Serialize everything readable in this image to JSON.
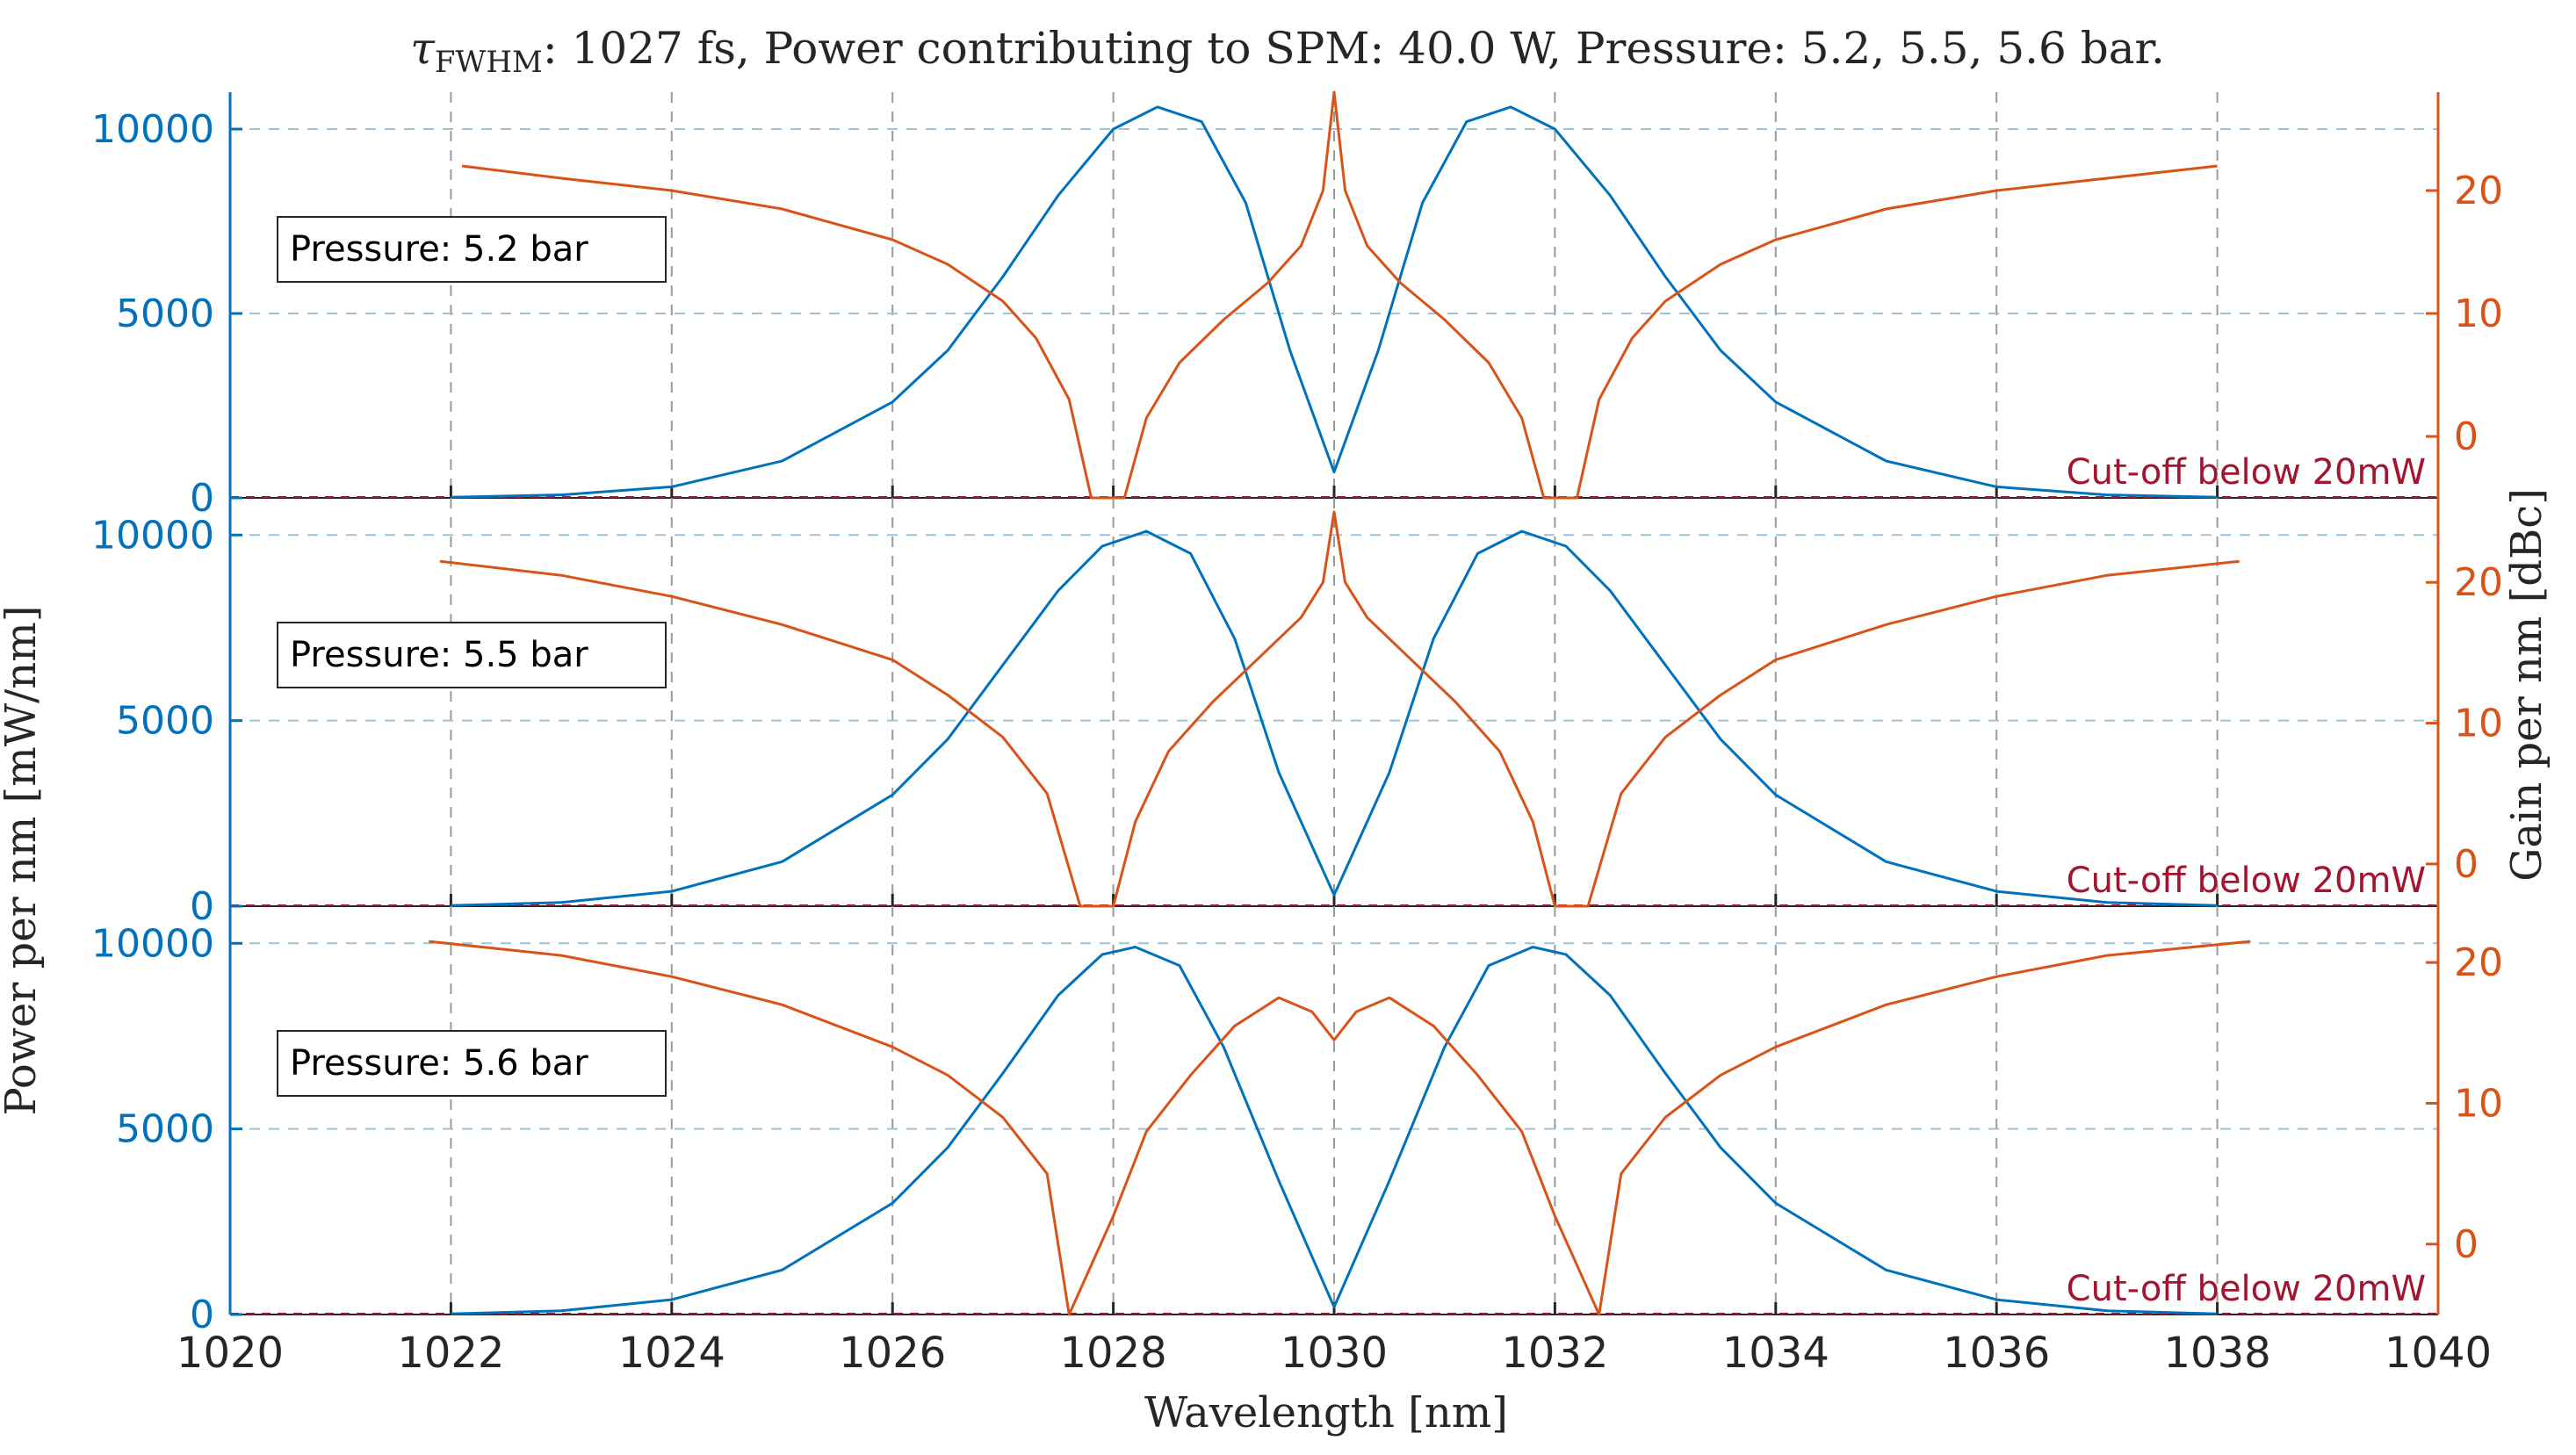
{
  "chart_data": {
    "type": "line",
    "title_prefix": "τ",
    "title_subscript": "FWHM",
    "title": ": 1027 fs, Power contributing to SPM: 40.0 W, Pressure: 5.2, 5.5, 5.6 bar.",
    "xlabel": "Wavelength [nm]",
    "ylabel_left": "Power per nm [mW/nm]",
    "ylabel_right": "Gain per nm [dBc]",
    "xlim": [
      1020,
      1040
    ],
    "xticks": [
      1020,
      1022,
      1024,
      1026,
      1028,
      1030,
      1032,
      1034,
      1036,
      1038,
      1040
    ],
    "colors": {
      "power": "#0072BD",
      "gain": "#D95319",
      "cutoff": "#A2142F",
      "grid": "#9BC4DA"
    },
    "panels": [
      {
        "label": "Pressure: 5.2 bar",
        "cutoff_text": "Cut-off below 20mW",
        "ylim_left": [
          0,
          11000
        ],
        "yticks_left": [
          0,
          5000,
          10000
        ],
        "ylim_right": [
          -5,
          28
        ],
        "yticks_right": [
          0,
          10,
          20
        ],
        "series": [
          {
            "name": "Power",
            "axis": "left",
            "x": [
              1022,
              1023,
              1024,
              1025,
              1026,
              1026.5,
              1027,
              1027.5,
              1028,
              1028.4,
              1028.8,
              1029.2,
              1029.6,
              1030,
              1030.4,
              1030.8,
              1031.2,
              1031.6,
              1032,
              1032.5,
              1033,
              1033.5,
              1034,
              1035,
              1036,
              1037,
              1038
            ],
            "values": [
              20,
              80,
              300,
              1000,
              2600,
              4000,
              6000,
              8200,
              10000,
              10600,
              10200,
              8000,
              4000,
              700,
              4000,
              8000,
              10200,
              10600,
              10000,
              8200,
              6000,
              4000,
              2600,
              1000,
              300,
              80,
              20
            ]
          },
          {
            "name": "Gain",
            "axis": "right",
            "x": [
              1022.1,
              1023,
              1024,
              1025,
              1026,
              1026.5,
              1027,
              1027.3,
              1027.6,
              1027.8,
              1028.1,
              1028.3,
              1028.6,
              1029,
              1029.4,
              1029.7,
              1029.9,
              1030,
              1030.1,
              1030.3,
              1030.6,
              1031,
              1031.4,
              1031.7,
              1031.9,
              1032.2,
              1032.4,
              1032.7,
              1033,
              1033.5,
              1034,
              1035,
              1036,
              1037,
              1038
            ],
            "values": [
              22,
              21,
              20,
              18.5,
              16,
              14,
              11,
              8,
              3,
              -5,
              -5,
              1.5,
              6,
              9.5,
              12.5,
              15.5,
              20,
              28,
              20,
              15.5,
              12.5,
              9.5,
              6,
              1.5,
              -5,
              -5,
              3,
              8,
              11,
              14,
              16,
              18.5,
              20,
              21,
              22
            ]
          }
        ]
      },
      {
        "label": "Pressure: 5.5 bar",
        "cutoff_text": "Cut-off below 20mW",
        "ylim_left": [
          0,
          11000
        ],
        "yticks_left": [
          0,
          5000,
          10000
        ],
        "ylim_right": [
          -3,
          26
        ],
        "yticks_right": [
          0,
          10,
          20
        ],
        "series": [
          {
            "name": "Power",
            "axis": "left",
            "x": [
              1022,
              1023,
              1024,
              1025,
              1026,
              1026.5,
              1027,
              1027.5,
              1027.9,
              1028.3,
              1028.7,
              1029.1,
              1029.5,
              1030,
              1030.5,
              1030.9,
              1031.3,
              1031.7,
              1032.1,
              1032.5,
              1033,
              1033.5,
              1034,
              1035,
              1036,
              1037,
              1038
            ],
            "values": [
              20,
              100,
              400,
              1200,
              3000,
              4500,
              6500,
              8500,
              9700,
              10100,
              9500,
              7200,
              3600,
              300,
              3600,
              7200,
              9500,
              10100,
              9700,
              8500,
              6500,
              4500,
              3000,
              1200,
              400,
              100,
              20
            ]
          },
          {
            "name": "Gain",
            "axis": "right",
            "x": [
              1021.9,
              1023,
              1024,
              1025,
              1026,
              1026.5,
              1027,
              1027.4,
              1027.7,
              1028,
              1028.2,
              1028.5,
              1028.9,
              1029.3,
              1029.7,
              1029.9,
              1030,
              1030.1,
              1030.3,
              1030.7,
              1031.1,
              1031.5,
              1031.8,
              1032,
              1032.3,
              1032.6,
              1033,
              1033.5,
              1034,
              1035,
              1036,
              1037,
              1038.2
            ],
            "values": [
              21.5,
              20.5,
              19,
              17,
              14.5,
              12,
              9,
              5,
              -3,
              -3,
              3,
              8,
              11.5,
              14.5,
              17.5,
              20,
              25,
              20,
              17.5,
              14.5,
              11.5,
              8,
              3,
              -3,
              -3,
              5,
              9,
              12,
              14.5,
              17,
              19,
              20.5,
              21.5
            ]
          }
        ]
      },
      {
        "label": "Pressure: 5.6 bar",
        "cutoff_text": "Cut-off below 20mW",
        "ylim_left": [
          0,
          11000
        ],
        "yticks_left": [
          0,
          5000,
          10000
        ],
        "ylim_right": [
          -5,
          24
        ],
        "yticks_right": [
          0,
          10,
          20
        ],
        "series": [
          {
            "name": "Power",
            "axis": "left",
            "x": [
              1022,
              1023,
              1024,
              1025,
              1026,
              1026.5,
              1027,
              1027.5,
              1027.9,
              1028.2,
              1028.6,
              1029,
              1029.5,
              1030,
              1030.5,
              1031,
              1031.4,
              1031.8,
              1032.1,
              1032.5,
              1033,
              1033.5,
              1034,
              1035,
              1036,
              1037,
              1038
            ],
            "values": [
              20,
              100,
              400,
              1200,
              3000,
              4500,
              6500,
              8600,
              9700,
              9900,
              9400,
              7200,
              3600,
              200,
              3600,
              7200,
              9400,
              9900,
              9700,
              8600,
              6500,
              4500,
              3000,
              1200,
              400,
              100,
              20
            ]
          },
          {
            "name": "Gain",
            "axis": "right",
            "x": [
              1021.8,
              1023,
              1024,
              1025,
              1026,
              1026.5,
              1027,
              1027.4,
              1027.6,
              1028,
              1028.3,
              1028.7,
              1029.1,
              1029.5,
              1029.8,
              1030,
              1030.2,
              1030.5,
              1030.9,
              1031.3,
              1031.7,
              1032,
              1032.4,
              1032.6,
              1033,
              1033.5,
              1034,
              1035,
              1036,
              1037,
              1038.3
            ],
            "values": [
              21.5,
              20.5,
              19,
              17,
              14,
              12,
              9,
              5,
              -5,
              2,
              8,
              12,
              15.5,
              17.5,
              16.5,
              14.5,
              16.5,
              17.5,
              15.5,
              12,
              8,
              2,
              -5,
              5,
              9,
              12,
              14,
              17,
              19,
              20.5,
              21.5
            ]
          }
        ]
      }
    ]
  }
}
